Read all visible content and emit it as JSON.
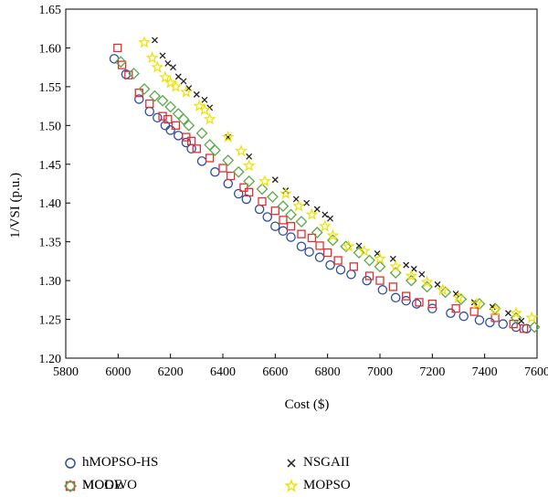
{
  "chart_data": {
    "type": "scatter",
    "xlabel": "Cost ($)",
    "ylabel": "1/VSI (p.u.)",
    "xlim": [
      5800,
      7600
    ],
    "ylim": [
      1.2,
      1.65
    ],
    "xticks": [
      5800,
      6000,
      6200,
      6400,
      6600,
      6800,
      7000,
      7200,
      7400,
      7600
    ],
    "yticks": [
      1.2,
      1.25,
      1.3,
      1.35,
      1.4,
      1.45,
      1.5,
      1.55,
      1.6,
      1.65
    ],
    "grid": false,
    "legend_position": "bottom",
    "series": [
      {
        "name": "hMOPSO-HS",
        "marker": "circle",
        "color": "#2e4d9e",
        "points": [
          [
            5985,
            1.586
          ],
          [
            6030,
            1.566
          ],
          [
            6080,
            1.534
          ],
          [
            6120,
            1.518
          ],
          [
            6150,
            1.51
          ],
          [
            6180,
            1.5
          ],
          [
            6200,
            1.494
          ],
          [
            6230,
            1.487
          ],
          [
            6260,
            1.478
          ],
          [
            6280,
            1.47
          ],
          [
            6320,
            1.454
          ],
          [
            6370,
            1.44
          ],
          [
            6420,
            1.425
          ],
          [
            6460,
            1.412
          ],
          [
            6490,
            1.405
          ],
          [
            6540,
            1.392
          ],
          [
            6570,
            1.382
          ],
          [
            6600,
            1.37
          ],
          [
            6630,
            1.364
          ],
          [
            6660,
            1.356
          ],
          [
            6700,
            1.344
          ],
          [
            6730,
            1.337
          ],
          [
            6770,
            1.33
          ],
          [
            6810,
            1.32
          ],
          [
            6850,
            1.314
          ],
          [
            6890,
            1.308
          ],
          [
            6950,
            1.3
          ],
          [
            7010,
            1.288
          ],
          [
            7060,
            1.278
          ],
          [
            7100,
            1.274
          ],
          [
            7140,
            1.27
          ],
          [
            7200,
            1.264
          ],
          [
            7270,
            1.258
          ],
          [
            7320,
            1.254
          ],
          [
            7380,
            1.249
          ],
          [
            7420,
            1.246
          ],
          [
            7470,
            1.244
          ],
          [
            7520,
            1.24
          ],
          [
            7560,
            1.238
          ]
        ]
      },
      {
        "name": "MOGWO",
        "marker": "square",
        "color": "#e03030",
        "points": [
          [
            5998,
            1.6
          ],
          [
            6015,
            1.578
          ],
          [
            6040,
            1.565
          ],
          [
            6080,
            1.542
          ],
          [
            6120,
            1.528
          ],
          [
            6170,
            1.512
          ],
          [
            6190,
            1.508
          ],
          [
            6220,
            1.5
          ],
          [
            6260,
            1.485
          ],
          [
            6280,
            1.48
          ],
          [
            6300,
            1.47
          ],
          [
            6350,
            1.458
          ],
          [
            6400,
            1.445
          ],
          [
            6430,
            1.435
          ],
          [
            6480,
            1.42
          ],
          [
            6500,
            1.414
          ],
          [
            6550,
            1.402
          ],
          [
            6600,
            1.39
          ],
          [
            6630,
            1.378
          ],
          [
            6660,
            1.37
          ],
          [
            6700,
            1.36
          ],
          [
            6740,
            1.355
          ],
          [
            6770,
            1.345
          ],
          [
            6800,
            1.336
          ],
          [
            6840,
            1.326
          ],
          [
            6900,
            1.318
          ],
          [
            6960,
            1.306
          ],
          [
            7000,
            1.3
          ],
          [
            7050,
            1.292
          ],
          [
            7100,
            1.28
          ],
          [
            7150,
            1.272
          ],
          [
            7200,
            1.27
          ],
          [
            7290,
            1.264
          ],
          [
            7360,
            1.26
          ],
          [
            7440,
            1.252
          ],
          [
            7510,
            1.244
          ],
          [
            7550,
            1.238
          ]
        ]
      },
      {
        "name": "MODE",
        "marker": "diamond",
        "color": "#5aa84a",
        "points": [
          [
            6010,
            1.582
          ],
          [
            6060,
            1.567
          ],
          [
            6100,
            1.547
          ],
          [
            6140,
            1.538
          ],
          [
            6170,
            1.532
          ],
          [
            6200,
            1.524
          ],
          [
            6230,
            1.515
          ],
          [
            6250,
            1.508
          ],
          [
            6270,
            1.5
          ],
          [
            6320,
            1.49
          ],
          [
            6350,
            1.475
          ],
          [
            6370,
            1.468
          ],
          [
            6420,
            1.455
          ],
          [
            6460,
            1.44
          ],
          [
            6500,
            1.428
          ],
          [
            6550,
            1.418
          ],
          [
            6590,
            1.408
          ],
          [
            6630,
            1.396
          ],
          [
            6660,
            1.385
          ],
          [
            6700,
            1.376
          ],
          [
            6760,
            1.362
          ],
          [
            6820,
            1.352
          ],
          [
            6870,
            1.344
          ],
          [
            6920,
            1.336
          ],
          [
            6960,
            1.326
          ],
          [
            7000,
            1.318
          ],
          [
            7060,
            1.31
          ],
          [
            7120,
            1.3
          ],
          [
            7180,
            1.292
          ],
          [
            7250,
            1.285
          ],
          [
            7310,
            1.276
          ],
          [
            7380,
            1.27
          ],
          [
            7440,
            1.264
          ],
          [
            7520,
            1.252
          ],
          [
            7590,
            1.24
          ]
        ]
      },
      {
        "name": "NSGAII",
        "marker": "x",
        "color": "#222222",
        "points": [
          [
            6140,
            1.61
          ],
          [
            6170,
            1.59
          ],
          [
            6190,
            1.58
          ],
          [
            6210,
            1.575
          ],
          [
            6230,
            1.563
          ],
          [
            6250,
            1.557
          ],
          [
            6270,
            1.548
          ],
          [
            6300,
            1.54
          ],
          [
            6330,
            1.533
          ],
          [
            6350,
            1.523
          ],
          [
            6420,
            1.485
          ],
          [
            6500,
            1.46
          ],
          [
            6600,
            1.43
          ],
          [
            6640,
            1.416
          ],
          [
            6680,
            1.405
          ],
          [
            6720,
            1.4
          ],
          [
            6760,
            1.392
          ],
          [
            6790,
            1.385
          ],
          [
            6810,
            1.38
          ],
          [
            6920,
            1.345
          ],
          [
            6990,
            1.335
          ],
          [
            7050,
            1.328
          ],
          [
            7100,
            1.32
          ],
          [
            7130,
            1.315
          ],
          [
            7160,
            1.308
          ],
          [
            7220,
            1.295
          ],
          [
            7290,
            1.283
          ],
          [
            7360,
            1.272
          ],
          [
            7430,
            1.266
          ],
          [
            7490,
            1.258
          ],
          [
            7540,
            1.248
          ]
        ]
      },
      {
        "name": "MOPSO",
        "marker": "star",
        "color": "#f0e000",
        "points": [
          [
            6100,
            1.607
          ],
          [
            6130,
            1.587
          ],
          [
            6150,
            1.575
          ],
          [
            6180,
            1.562
          ],
          [
            6200,
            1.555
          ],
          [
            6220,
            1.55
          ],
          [
            6260,
            1.543
          ],
          [
            6310,
            1.525
          ],
          [
            6330,
            1.52
          ],
          [
            6350,
            1.508
          ],
          [
            6420,
            1.485
          ],
          [
            6470,
            1.467
          ],
          [
            6500,
            1.448
          ],
          [
            6560,
            1.428
          ],
          [
            6640,
            1.412
          ],
          [
            6690,
            1.396
          ],
          [
            6740,
            1.385
          ],
          [
            6790,
            1.37
          ],
          [
            6820,
            1.358
          ],
          [
            6880,
            1.344
          ],
          [
            6940,
            1.338
          ],
          [
            7000,
            1.328
          ],
          [
            7060,
            1.318
          ],
          [
            7120,
            1.306
          ],
          [
            7180,
            1.298
          ],
          [
            7240,
            1.288
          ],
          [
            7300,
            1.278
          ],
          [
            7370,
            1.27
          ],
          [
            7440,
            1.262
          ],
          [
            7520,
            1.258
          ],
          [
            7580,
            1.252
          ]
        ]
      }
    ]
  }
}
